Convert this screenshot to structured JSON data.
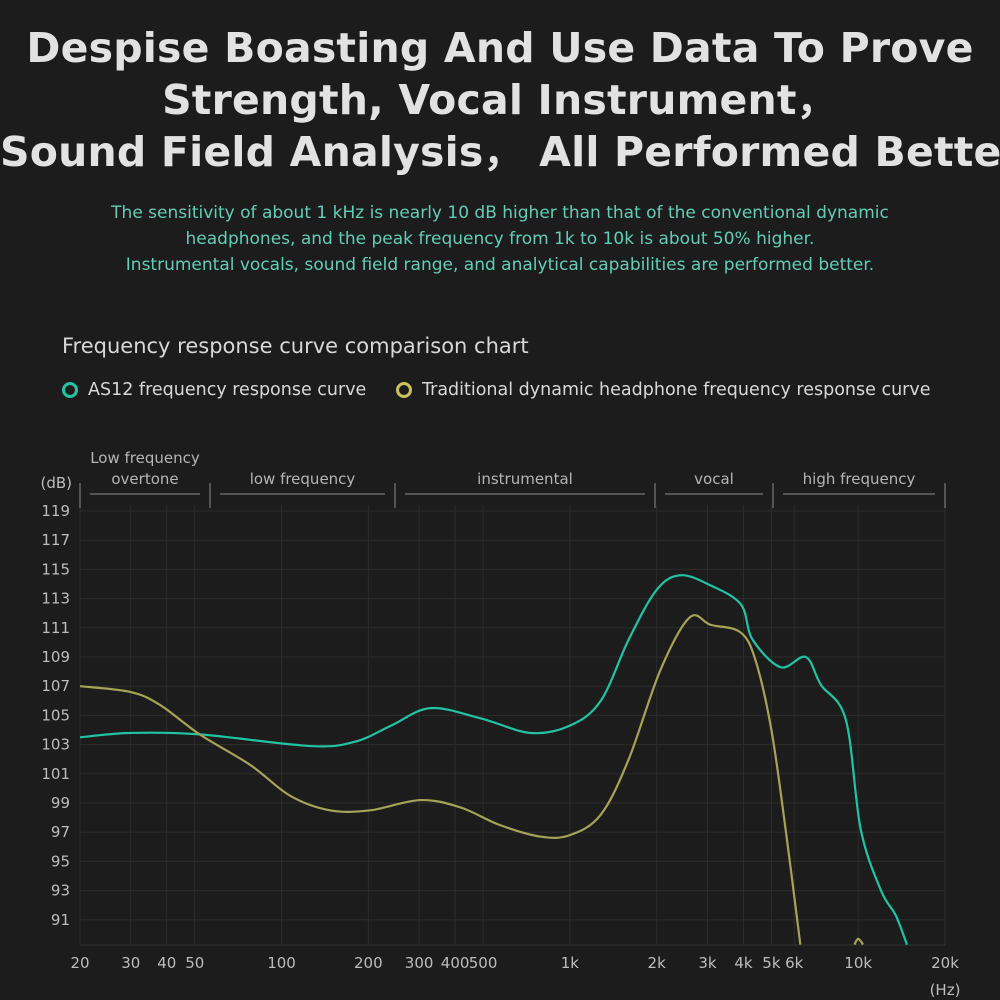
{
  "headline": [
    "Despise Boasting And Use Data To Prove",
    "Strength, Vocal Instrument，",
    "Sound Field Analysis， All Performed Better."
  ],
  "subtext": [
    "The sensitivity of about 1 kHz is nearly 10 dB higher than that of the conventional dynamic",
    "headphones, and the peak frequency from 1k to 10k is about 50% higher.",
    "Instrumental vocals, sound field range, and analytical capabilities are performed better."
  ],
  "colors": {
    "as12": "#22c3a3",
    "traditional": "#a3a457",
    "grid": "#2c2c2c"
  },
  "chart_data": {
    "type": "line",
    "title": "Frequency response curve comparison chart",
    "xlabel": "(Hz)",
    "ylabel": "(dB)",
    "xscale": "log",
    "xlim": [
      20,
      20000
    ],
    "ylim": [
      89.3,
      119.4
    ],
    "x_ticks": [
      {
        "v": 20,
        "l": "20"
      },
      {
        "v": 30,
        "l": "30"
      },
      {
        "v": 40,
        "l": "40"
      },
      {
        "v": 50,
        "l": "50"
      },
      {
        "v": 100,
        "l": "100"
      },
      {
        "v": 200,
        "l": "200"
      },
      {
        "v": 300,
        "l": "300"
      },
      {
        "v": 400,
        "l": "400"
      },
      {
        "v": 500,
        "l": "500"
      },
      {
        "v": 1000,
        "l": "1k"
      },
      {
        "v": 2000,
        "l": "2k"
      },
      {
        "v": 3000,
        "l": "3k"
      },
      {
        "v": 4000,
        "l": "4k"
      },
      {
        "v": 5000,
        "l": "5k"
      },
      {
        "v": 6000,
        "l": "6k"
      },
      {
        "v": 10000,
        "l": "10k"
      },
      {
        "v": 20000,
        "l": "20k"
      }
    ],
    "y_ticks": [
      119,
      117,
      115,
      113,
      111,
      109,
      107,
      105,
      103,
      101,
      99,
      97,
      95,
      93,
      91
    ],
    "grid": true,
    "legend": "top-left",
    "bands": [
      {
        "label": [
          "Low frequency",
          "overtone"
        ],
        "from": 20,
        "to": 55
      },
      {
        "label": [
          "low frequency"
        ],
        "from": 55,
        "to": 240
      },
      {
        "label": [
          "instrumental"
        ],
        "from": 240,
        "to": 2000
      },
      {
        "label": [
          "vocal"
        ],
        "from": 2000,
        "to": 5200
      },
      {
        "label": [
          "high frequency"
        ],
        "from": 5200,
        "to": 20000
      }
    ],
    "series": [
      {
        "name": "AS12 frequency response curve",
        "x": [
          20,
          30,
          52,
          126,
          180,
          240,
          328,
          490,
          730,
          1000,
          1280,
          1600,
          2000,
          2420,
          3080,
          3920,
          4300,
          5380,
          6580,
          7420,
          9060,
          10200,
          12000,
          13500,
          14760
        ],
        "y": [
          103.5,
          103.8,
          103.7,
          102.9,
          103.2,
          104.3,
          105.5,
          104.8,
          103.8,
          104.3,
          106,
          110.2,
          113.6,
          114.6,
          113.9,
          112.6,
          110.2,
          108.3,
          109,
          107.1,
          104.7,
          97.2,
          93,
          91.3,
          89.3
        ]
      },
      {
        "name": "Traditional dynamic headphone frequency response curve",
        "x": [
          20,
          30,
          38,
          52,
          78,
          107,
          147,
          203,
          303,
          417,
          570,
          790,
          1000,
          1280,
          1600,
          2060,
          2600,
          3080,
          3900,
          4400,
          5000,
          5600,
          6300
        ],
        "y": [
          107,
          106.6,
          105.7,
          103.7,
          101.6,
          99.5,
          98.5,
          98.5,
          99.2,
          98.7,
          97.5,
          96.7,
          96.8,
          98.2,
          102,
          108.1,
          111.7,
          111.2,
          110.7,
          108.8,
          104,
          97.2,
          89.3
        ]
      },
      {
        "name": "Traditional dynamic headphone frequency response curve (tail)",
        "x": [
          9700,
          10000,
          10400
        ],
        "y": [
          89.3,
          89.7,
          89.3
        ]
      }
    ]
  }
}
